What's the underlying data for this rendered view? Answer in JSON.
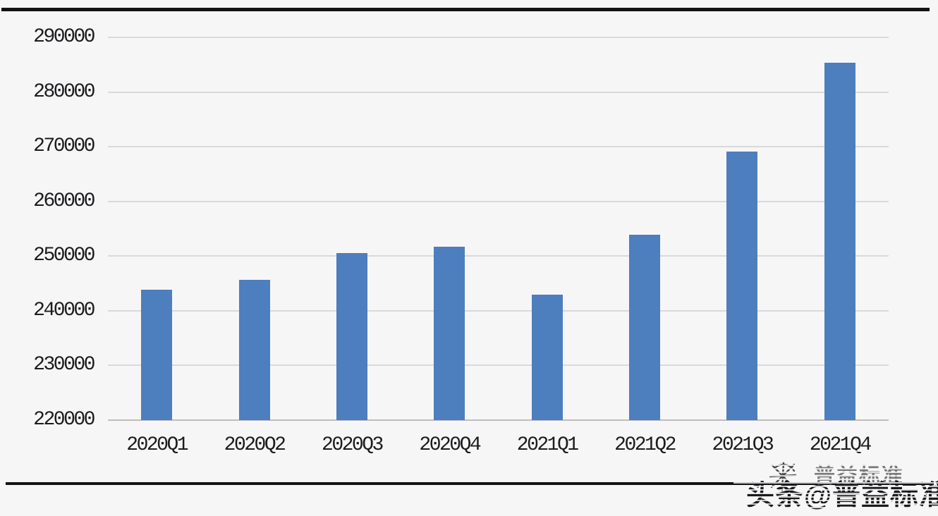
{
  "chart_data": {
    "type": "bar",
    "categories": [
      "2020Q1",
      "2020Q2",
      "2020Q3",
      "2020Q4",
      "2021Q1",
      "2021Q2",
      "2021Q3",
      "2021Q4"
    ],
    "values": [
      243800,
      245700,
      250600,
      251700,
      243000,
      253900,
      269100,
      285400
    ],
    "title": "",
    "xlabel": "",
    "ylabel": "",
    "ylim": [
      220000,
      290000
    ],
    "yticks": [
      "290000",
      "280000",
      "270000",
      "260000",
      "250000",
      "240000",
      "230000",
      "220000"
    ],
    "grid": true,
    "legend": "none",
    "bar_color": "#4d7ebe"
  },
  "watermark": {
    "main_text": "头条@普益标准",
    "ghost_text": "普益标准"
  },
  "colors": {
    "background": "#f7f6f7",
    "bar": "#4d7ebe",
    "gridline": "#d9d9dc",
    "axis_baseline": "#bdbdc0",
    "text": "#1c1c1e",
    "rule": "#131315"
  }
}
